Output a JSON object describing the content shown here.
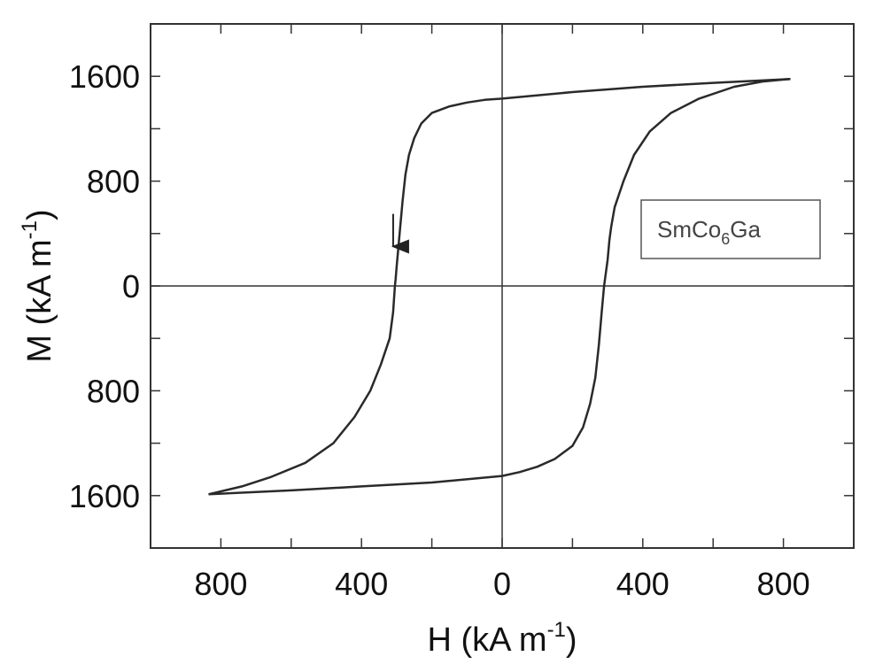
{
  "chart_data": {
    "type": "line",
    "title": "",
    "xlabel": {
      "base": "H (kA m",
      "sup": "-1",
      "close": ")"
    },
    "ylabel": {
      "base": "M (kA m",
      "sup": "-1",
      "close": ")"
    },
    "xlim": [
      -1000,
      1000
    ],
    "ylim": [
      -2000,
      2000
    ],
    "x_ticks": [
      -800,
      -400,
      0,
      400,
      800
    ],
    "x_tick_labels": [
      "800",
      "400",
      "0",
      "400",
      "800"
    ],
    "y_ticks": [
      1600,
      800,
      0,
      -800,
      -1600
    ],
    "y_tick_labels": [
      "1600",
      "800",
      "0",
      "800",
      "1600"
    ],
    "x_minor_ticks": [
      -1000,
      -800,
      -600,
      -400,
      -200,
      0,
      200,
      400,
      600,
      800,
      1000
    ],
    "y_minor_ticks": [
      -2000,
      -1600,
      -1200,
      -800,
      -400,
      0,
      400,
      800,
      1200,
      1600,
      2000
    ],
    "grid": false,
    "zero_lines": true,
    "legend": {
      "base": "SmCo",
      "sub": "6",
      "rest": "Ga",
      "placement": "right"
    },
    "arrow": {
      "x": -310,
      "y_from": 550,
      "y_to": 220
    },
    "series": [
      {
        "branch": "descending",
        "x": [
          820,
          600,
          400,
          200,
          0,
          -50,
          -100,
          -150,
          -200,
          -230,
          -250,
          -265,
          -275,
          -283,
          -290,
          -295,
          -300,
          -303,
          -305,
          -310,
          -320,
          -345,
          -375,
          -420,
          -480,
          -560,
          -660,
          -740,
          -835
        ],
        "y": [
          1580,
          1550,
          1520,
          1480,
          1430,
          1420,
          1400,
          1370,
          1320,
          1240,
          1130,
          1000,
          850,
          650,
          450,
          300,
          150,
          50,
          0,
          -200,
          -400,
          -600,
          -800,
          -1000,
          -1200,
          -1350,
          -1460,
          -1530,
          -1590
        ]
      },
      {
        "branch": "ascending",
        "x": [
          -835,
          -600,
          -400,
          -200,
          0,
          50,
          100,
          150,
          200,
          230,
          250,
          265,
          275,
          283,
          290,
          300,
          305,
          310,
          320,
          345,
          375,
          420,
          480,
          560,
          660,
          740,
          820
        ],
        "y": [
          -1590,
          -1560,
          -1530,
          -1500,
          -1450,
          -1420,
          -1380,
          -1320,
          -1220,
          -1080,
          -900,
          -700,
          -450,
          -200,
          0,
          200,
          350,
          450,
          600,
          800,
          1000,
          1180,
          1320,
          1430,
          1520,
          1560,
          1580
        ]
      }
    ]
  }
}
